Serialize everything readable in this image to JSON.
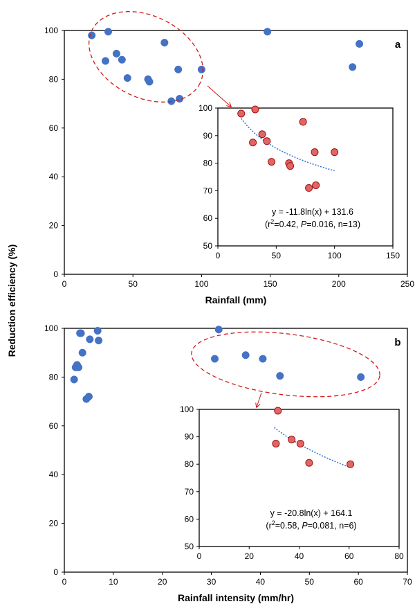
{
  "shared_ylabel": "Reduction efficiency (%)",
  "colors": {
    "main_points": "#4472C4",
    "inset_points": "#E06666",
    "inset_point_edge": "#A01010",
    "trend": "#2F6FCF",
    "ellipse": "#D01818"
  },
  "chart_data": [
    {
      "type": "scatter",
      "panel_label": "a",
      "xlabel": "Rainfall (mm)",
      "ylabel": "Reduction efficiency (%)",
      "xlim": [
        0,
        250
      ],
      "ylim": [
        0,
        100
      ],
      "xticks": [
        "0",
        "50",
        "100",
        "150",
        "200",
        "250"
      ],
      "yticks": [
        "0",
        "20",
        "40",
        "60",
        "80",
        "100"
      ],
      "grid": false,
      "x": [
        20,
        30,
        32,
        38,
        42,
        46,
        61,
        62,
        73,
        78,
        83,
        84,
        100,
        148,
        210,
        215
      ],
      "y": [
        98,
        87.5,
        99.5,
        90.5,
        88,
        80.5,
        80,
        79,
        95,
        71,
        84,
        72,
        84,
        99.5,
        85,
        94.5
      ],
      "inset": {
        "type": "scatter",
        "xlim": [
          0,
          150
        ],
        "ylim": [
          50,
          100
        ],
        "xticks": [
          "0",
          "50",
          "100",
          "150"
        ],
        "yticks": [
          "50",
          "60",
          "70",
          "80",
          "90",
          "100"
        ],
        "x": [
          20,
          30,
          32,
          38,
          42,
          46,
          61,
          62,
          73,
          78,
          83,
          84,
          100
        ],
        "y": [
          98,
          87.5,
          99.5,
          90.5,
          88,
          80.5,
          80,
          79,
          95,
          71,
          84,
          72,
          84
        ],
        "fit": {
          "type": "log",
          "a": -11.8,
          "b": 131.6,
          "x_range": [
            20,
            100
          ]
        },
        "equation": "y = -11.8ln(x) + 131.6",
        "stats": {
          "prefix": "(r",
          "sup": "2",
          "mid": "=0.42, ",
          "p_label": "P",
          "rest": "=0.016, n=13)"
        }
      }
    },
    {
      "type": "scatter",
      "panel_label": "b",
      "xlabel": "Rainfall intensity (mm/hr)",
      "ylabel": "Reduction efficiency (%)",
      "xlim": [
        0,
        70
      ],
      "ylim": [
        0,
        100
      ],
      "xticks": [
        "0",
        "10",
        "20",
        "30",
        "40",
        "50",
        "60",
        "70"
      ],
      "yticks": [
        "0",
        "20",
        "40",
        "60",
        "80",
        "100"
      ],
      "grid": false,
      "x": [
        2.0,
        2.3,
        2.6,
        2.9,
        3.2,
        3.4,
        3.7,
        4.5,
        5.0,
        5.2,
        6.8,
        7.0,
        30.7,
        31.5,
        37.0,
        40.5,
        44.0,
        60.5
      ],
      "y": [
        79,
        84,
        85,
        84,
        98,
        98,
        90,
        71,
        72,
        95.5,
        99,
        95,
        87.5,
        99.5,
        89,
        87.5,
        80.5,
        80
      ],
      "inset": {
        "type": "scatter",
        "xlim": [
          0,
          80
        ],
        "ylim": [
          50,
          100
        ],
        "xticks": [
          "0",
          "20",
          "40",
          "60",
          "80"
        ],
        "yticks": [
          "50",
          "60",
          "70",
          "80",
          "90",
          "100"
        ],
        "x": [
          30.7,
          31.5,
          37.0,
          40.5,
          44.0,
          60.5
        ],
        "y": [
          87.5,
          99.5,
          89,
          87.5,
          80.5,
          80
        ],
        "fit": {
          "type": "log",
          "a": -20.8,
          "b": 164.1,
          "x_range": [
            30,
            60
          ]
        },
        "equation": "y = -20.8ln(x) + 164.1",
        "stats": {
          "prefix": "(r",
          "sup": "2",
          "mid": "=0.58, ",
          "p_label": "P",
          "rest": "=0.081, n=6)"
        }
      }
    }
  ]
}
